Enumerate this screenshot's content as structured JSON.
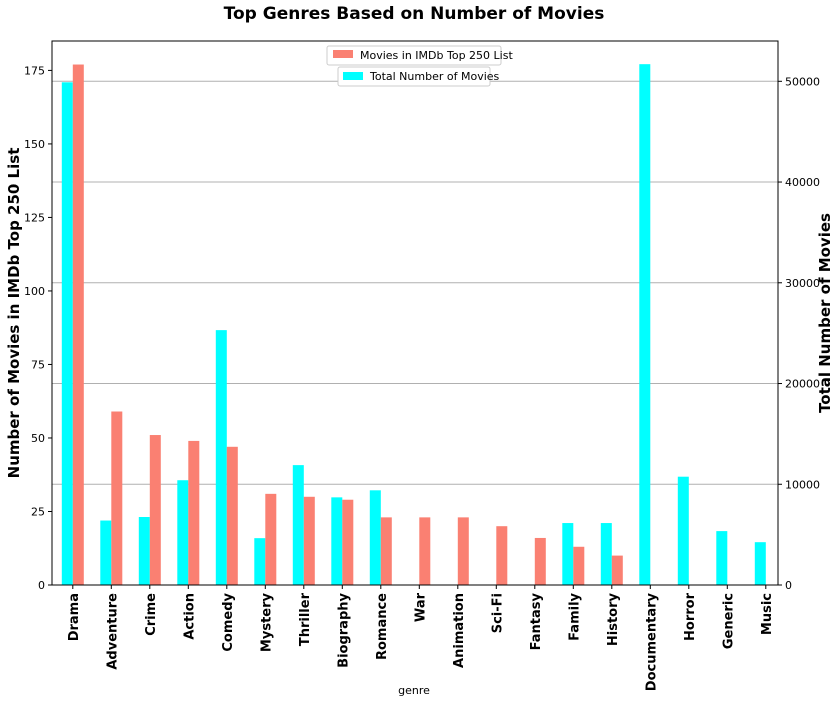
{
  "chart_data": {
    "type": "bar",
    "title": "Top Genres Based on Number of Movies",
    "xlabel": "genre",
    "ylabel_left": "Number of Movies in IMDb Top 250 List",
    "ylabel_right": "Total Number of Movies",
    "categories": [
      "Drama",
      "Adventure",
      "Crime",
      "Action",
      "Comedy",
      "Mystery",
      "Thriller",
      "Biography",
      "Romance",
      "War",
      "Animation",
      "Sci-Fi",
      "Fantasy",
      "Family",
      "History",
      "Documentary",
      "Horror",
      "Generic",
      "Music"
    ],
    "series": [
      {
        "name": "Movies in IMDb Top 250 List",
        "axis": "left",
        "color": "#fa8072",
        "values": [
          177,
          59,
          51,
          49,
          47,
          31,
          30,
          29,
          23,
          23,
          23,
          20,
          16,
          13,
          10,
          0,
          0,
          0,
          0
        ]
      },
      {
        "name": "Total Number of Movies",
        "axis": "right",
        "color": "#00ffff",
        "values": [
          49900,
          6400,
          6750,
          10400,
          25300,
          4650,
          11900,
          8700,
          9400,
          0,
          0,
          0,
          0,
          6150,
          6150,
          51700,
          10750,
          5350,
          4250
        ]
      }
    ],
    "ylim_left": [
      0,
      185
    ],
    "ylim_right": [
      0,
      54000
    ],
    "yticks_left": [
      "0",
      "25",
      "50",
      "75",
      "100",
      "125",
      "150",
      "175"
    ],
    "yticks_right": [
      "0",
      "10000",
      "20000",
      "30000",
      "40000",
      "50000"
    ],
    "grid": "horizontal",
    "legend_placement": "top-center"
  }
}
